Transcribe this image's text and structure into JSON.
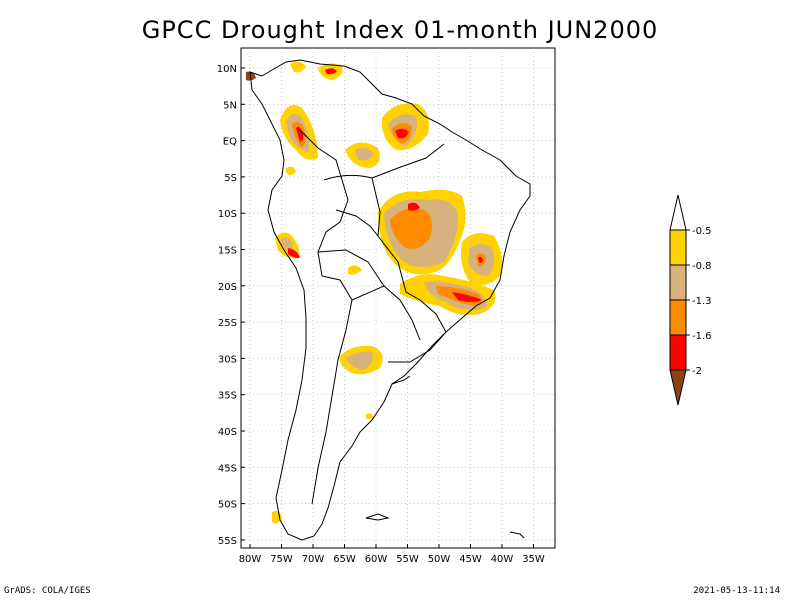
{
  "title": "GPCC Drought Index 01-month JUN2000",
  "lat_labels": [
    "10N",
    "5N",
    "EQ",
    "5S",
    "10S",
    "15S",
    "20S",
    "25S",
    "30S",
    "35S",
    "40S",
    "45S",
    "50S",
    "55S"
  ],
  "lon_labels": [
    "80W",
    "75W",
    "70W",
    "65W",
    "60W",
    "55W",
    "50W",
    "45W",
    "40W",
    "35W"
  ],
  "legend": {
    "levels": [
      "-0.5",
      "-0.8",
      "-1.3",
      "-1.6",
      "-2"
    ],
    "colors": [
      "#ffd200",
      "#d7b27d",
      "#ff8c00",
      "#ff0000",
      "#8b4513"
    ],
    "top_arrow_color": "#ffffff"
  },
  "colors": {
    "yellow": "#ffd200",
    "tan": "#d7b27d",
    "orange": "#ff8c00",
    "red": "#ff0000",
    "brown": "#8b4513"
  },
  "footer": {
    "credit": "GrADS: COLA/IGES",
    "timestamp": "2021-05-13-11:14"
  }
}
